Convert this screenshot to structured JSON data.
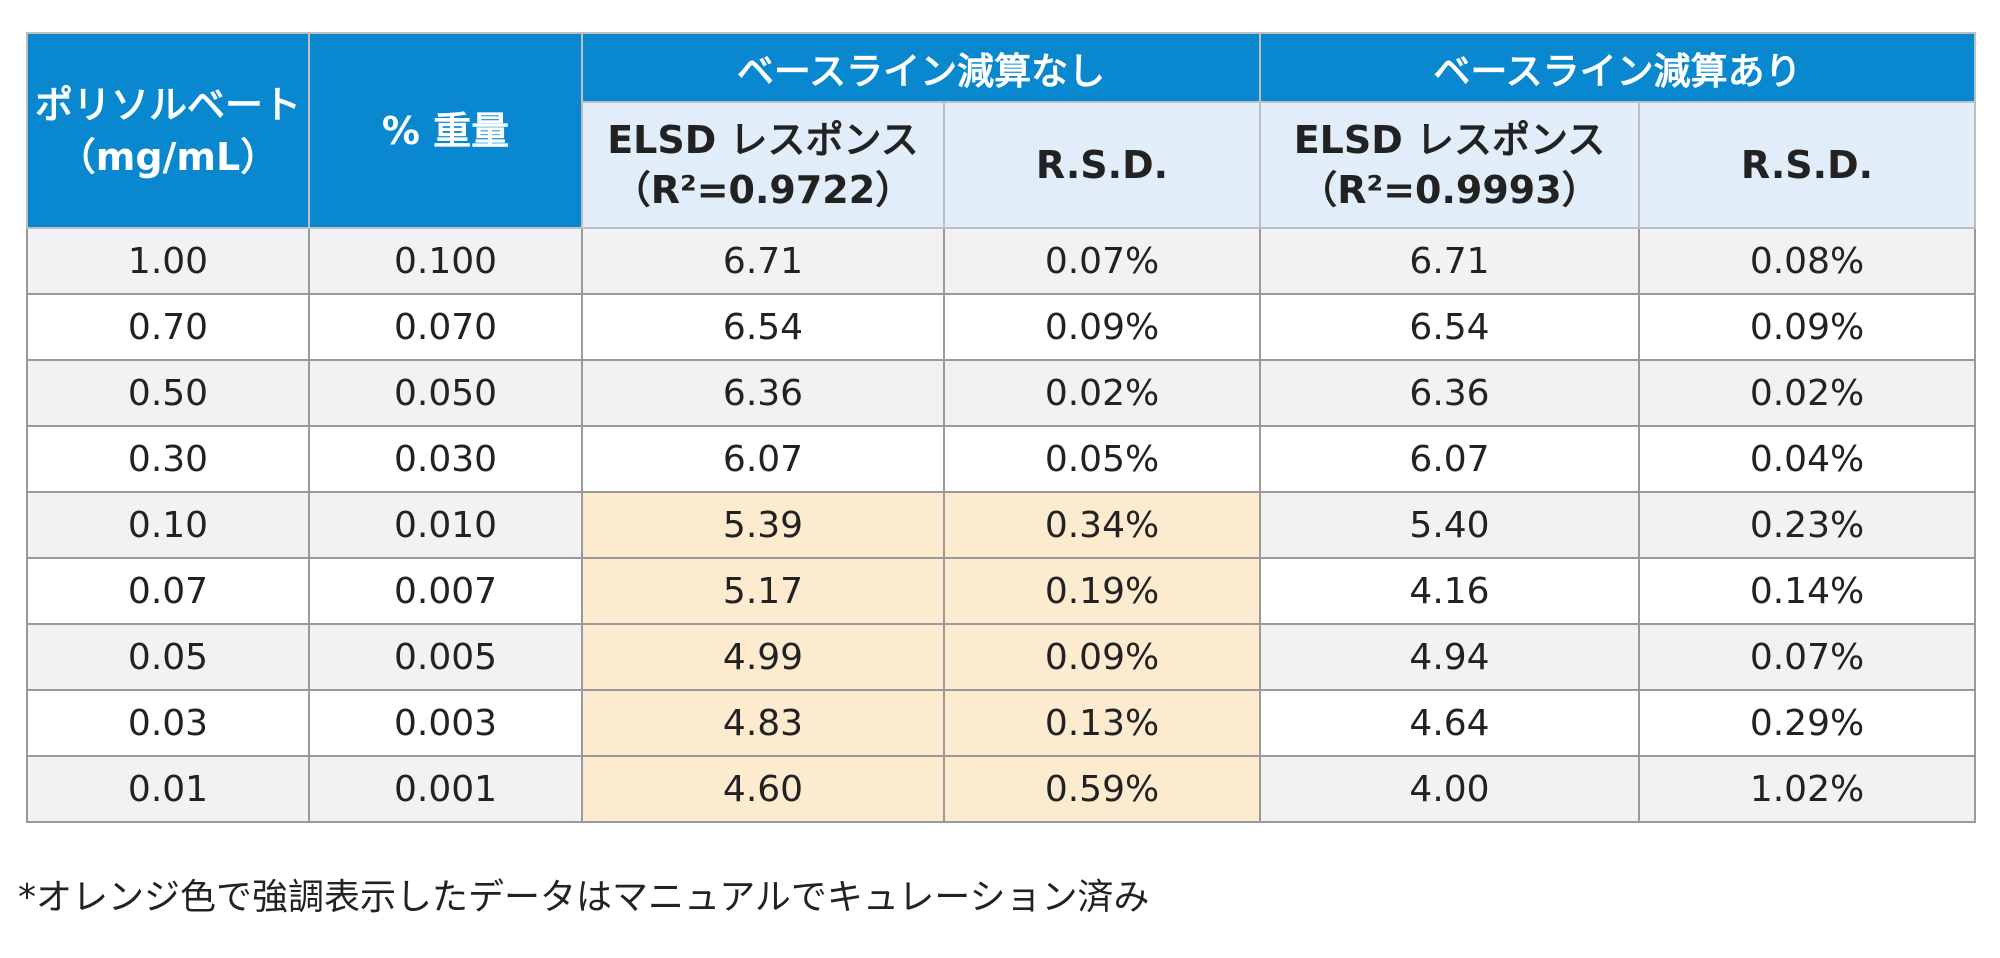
{
  "table": {
    "headers": {
      "col1": [
        "ポリソルベート",
        "（mg/mL）"
      ],
      "col2": "% 重量",
      "group1": "ベースライン減算なし",
      "group2": "ベースライン減算あり",
      "group1_response": [
        "ELSD レスポンス",
        "（R²=0.9722）"
      ],
      "group1_rsd": "R.S.D.",
      "group2_response": [
        "ELSD レスポンス",
        "（R²=0.9993）"
      ],
      "group2_rsd": "R.S.D."
    },
    "rows": [
      {
        "conc": "1.00",
        "weight": "0.100",
        "resp_no": "6.71",
        "rsd_no": "0.07%",
        "resp_yes": "6.71",
        "rsd_yes": "0.08%",
        "highlighted": false
      },
      {
        "conc": "0.70",
        "weight": "0.070",
        "resp_no": "6.54",
        "rsd_no": "0.09%",
        "resp_yes": "6.54",
        "rsd_yes": "0.09%",
        "highlighted": false
      },
      {
        "conc": "0.50",
        "weight": "0.050",
        "resp_no": "6.36",
        "rsd_no": "0.02%",
        "resp_yes": "6.36",
        "rsd_yes": "0.02%",
        "highlighted": false
      },
      {
        "conc": "0.30",
        "weight": "0.030",
        "resp_no": "6.07",
        "rsd_no": "0.05%",
        "resp_yes": "6.07",
        "rsd_yes": "0.04%",
        "highlighted": false
      },
      {
        "conc": "0.10",
        "weight": "0.010",
        "resp_no": "5.39",
        "rsd_no": "0.34%",
        "resp_yes": "5.40",
        "rsd_yes": "0.23%",
        "highlighted": true
      },
      {
        "conc": "0.07",
        "weight": "0.007",
        "resp_no": "5.17",
        "rsd_no": "0.19%",
        "resp_yes": "4.16",
        "rsd_yes": "0.14%",
        "highlighted": true
      },
      {
        "conc": "0.05",
        "weight": "0.005",
        "resp_no": "4.99",
        "rsd_no": "0.09%",
        "resp_yes": "4.94",
        "rsd_yes": "0.07%",
        "highlighted": true
      },
      {
        "conc": "0.03",
        "weight": "0.003",
        "resp_no": "4.83",
        "rsd_no": "0.13%",
        "resp_yes": "4.64",
        "rsd_yes": "0.29%",
        "highlighted": true
      },
      {
        "conc": "0.01",
        "weight": "0.001",
        "resp_no": "4.60",
        "rsd_no": "0.59%",
        "resp_yes": "4.00",
        "rsd_yes": "1.02%",
        "highlighted": true
      }
    ]
  },
  "footnote": "*オレンジ色で強調表示したデータはマニュアルでキュレーション済み",
  "colors": {
    "header_blue": "#0a88cf",
    "subheader_light_blue": "#e1edf9",
    "highlight_orange": "#fdebd0",
    "stripe_gray": "#f2f2f4"
  }
}
